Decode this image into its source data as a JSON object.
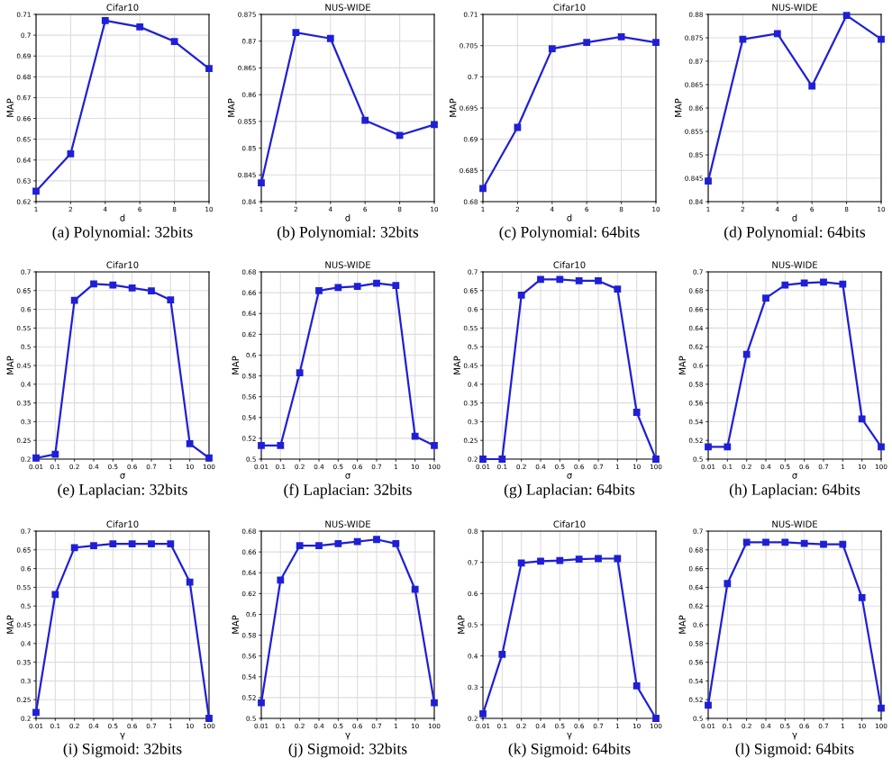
{
  "chart_data": [
    {
      "type": "line",
      "title": "Cifar10",
      "xlabel": "d",
      "ylabel": "MAP",
      "annotations": [
        "(a) Polynomial: 32bits"
      ],
      "categories": [
        "1",
        "2",
        "4",
        "6",
        "8",
        "10"
      ],
      "series": [
        {
          "color": "#1f1fd6",
          "values": [
            0.625,
            0.643,
            0.707,
            0.704,
            0.697,
            0.684
          ]
        }
      ],
      "ylim": [
        0.62,
        0.71
      ],
      "yticks": [
        0.62,
        0.63,
        0.64,
        0.65,
        0.66,
        0.67,
        0.68,
        0.69,
        0.7,
        0.71
      ],
      "grid": true,
      "marker": "square",
      "line_style": "solid"
    },
    {
      "type": "line",
      "title": "NUS-WIDE",
      "xlabel": "d",
      "ylabel": "MAP",
      "annotations": [
        "(b) Polynomial: 32bits"
      ],
      "categories": [
        "1",
        "2",
        "4",
        "6",
        "8",
        "10"
      ],
      "series": [
        {
          "color": "#1f1fd6",
          "values": [
            0.8435,
            0.8716,
            0.8705,
            0.8552,
            0.8524,
            0.8544
          ]
        }
      ],
      "ylim": [
        0.84,
        0.875
      ],
      "yticks": [
        0.84,
        0.845,
        0.85,
        0.855,
        0.86,
        0.865,
        0.87,
        0.875
      ],
      "grid": true,
      "marker": "square",
      "line_style": "solid"
    },
    {
      "type": "line",
      "title": "Cifar10",
      "xlabel": "d",
      "ylabel": "MAP",
      "annotations": [
        "(c) Polynomial: 64bits"
      ],
      "categories": [
        "1",
        "2",
        "4",
        "6",
        "8",
        "10"
      ],
      "series": [
        {
          "color": "#1f1fd6",
          "values": [
            0.6821,
            0.6919,
            0.7045,
            0.7055,
            0.7064,
            0.7055
          ]
        }
      ],
      "ylim": [
        0.68,
        0.71
      ],
      "yticks": [
        0.68,
        0.685,
        0.69,
        0.695,
        0.7,
        0.705,
        0.71
      ],
      "grid": true,
      "marker": "square",
      "line_style": "solid"
    },
    {
      "type": "line",
      "title": "NUS-WIDE",
      "xlabel": "d",
      "ylabel": "MAP",
      "annotations": [
        "(d) Polynomial: 64bits"
      ],
      "categories": [
        "1",
        "2",
        "4",
        "6",
        "8",
        "10"
      ],
      "series": [
        {
          "color": "#1f1fd6",
          "values": [
            0.8444,
            0.8747,
            0.8759,
            0.8647,
            0.8798,
            0.8747
          ]
        }
      ],
      "ylim": [
        0.84,
        0.88
      ],
      "yticks": [
        0.84,
        0.845,
        0.85,
        0.855,
        0.86,
        0.865,
        0.87,
        0.875,
        0.88
      ],
      "grid": true,
      "marker": "square",
      "line_style": "solid"
    },
    {
      "type": "line",
      "title": "Cifar10",
      "xlabel": "σ",
      "ylabel": "MAP",
      "annotations": [
        "(e) Laplacian: 32bits"
      ],
      "categories": [
        "0.01",
        "0.1",
        "0.2",
        "0.4",
        "0.5",
        "0.6",
        "0.7",
        "1",
        "10",
        "100"
      ],
      "series": [
        {
          "color": "#1f1fd6",
          "values": [
            0.203,
            0.213,
            0.624,
            0.668,
            0.665,
            0.657,
            0.649,
            0.625,
            0.241,
            0.203
          ]
        }
      ],
      "ylim": [
        0.2,
        0.7
      ],
      "yticks": [
        0.2,
        0.25,
        0.3,
        0.35,
        0.4,
        0.45,
        0.5,
        0.55,
        0.6,
        0.65,
        0.7
      ],
      "grid": true,
      "marker": "square",
      "line_style": "solid"
    },
    {
      "type": "line",
      "title": "NUS-WIDE",
      "xlabel": "σ",
      "ylabel": "MAP",
      "annotations": [
        "(f) Laplacian: 32bits"
      ],
      "categories": [
        "0.01",
        "0.1",
        "0.2",
        "0.4",
        "0.5",
        "0.6",
        "0.7",
        "1",
        "10",
        "100"
      ],
      "series": [
        {
          "color": "#1f1fd6",
          "values": [
            0.513,
            0.513,
            0.583,
            0.662,
            0.665,
            0.666,
            0.669,
            0.667,
            0.522,
            0.513
          ]
        }
      ],
      "ylim": [
        0.5,
        0.68
      ],
      "yticks": [
        0.5,
        0.52,
        0.54,
        0.56,
        0.58,
        0.6,
        0.62,
        0.64,
        0.66,
        0.68
      ],
      "grid": true,
      "marker": "square",
      "line_style": "solid"
    },
    {
      "type": "line",
      "title": "Cifar10",
      "xlabel": "σ",
      "ylabel": "MAP",
      "annotations": [
        "(g) Laplacian: 64bits"
      ],
      "categories": [
        "0.01",
        "0.1",
        "0.2",
        "0.4",
        "0.5",
        "0.6",
        "0.7",
        "1",
        "10",
        "100"
      ],
      "series": [
        {
          "color": "#1f1fd6",
          "values": [
            0.2,
            0.2,
            0.638,
            0.68,
            0.68,
            0.676,
            0.676,
            0.654,
            0.325,
            0.2
          ]
        }
      ],
      "ylim": [
        0.2,
        0.7
      ],
      "yticks": [
        0.2,
        0.25,
        0.3,
        0.35,
        0.4,
        0.45,
        0.5,
        0.55,
        0.6,
        0.65,
        0.7
      ],
      "grid": true,
      "marker": "square",
      "line_style": "solid"
    },
    {
      "type": "line",
      "title": "NUS-WIDE",
      "xlabel": "σ",
      "ylabel": "MAP",
      "annotations": [
        "(h) Laplacian: 64bits"
      ],
      "categories": [
        "0.01",
        "0.1",
        "0.2",
        "0.4",
        "0.5",
        "0.6",
        "0.7",
        "1",
        "10",
        "100"
      ],
      "series": [
        {
          "color": "#1f1fd6",
          "values": [
            0.513,
            0.513,
            0.612,
            0.672,
            0.686,
            0.688,
            0.689,
            0.687,
            0.543,
            0.513
          ]
        }
      ],
      "ylim": [
        0.5,
        0.7
      ],
      "yticks": [
        0.5,
        0.52,
        0.54,
        0.56,
        0.58,
        0.6,
        0.62,
        0.64,
        0.66,
        0.68,
        0.7
      ],
      "grid": true,
      "marker": "square",
      "line_style": "solid"
    },
    {
      "type": "line",
      "title": "Cifar10",
      "xlabel": "γ",
      "ylabel": "MAP",
      "annotations": [
        "(i) Sigmoid: 32bits"
      ],
      "categories": [
        "0.01",
        "0.1",
        "0.2",
        "0.4",
        "0.5",
        "0.6",
        "0.7",
        "1",
        "10",
        "100"
      ],
      "series": [
        {
          "color": "#1f1fd6",
          "values": [
            0.216,
            0.531,
            0.656,
            0.661,
            0.666,
            0.666,
            0.666,
            0.666,
            0.564,
            0.2
          ]
        }
      ],
      "ylim": [
        0.2,
        0.7
      ],
      "yticks": [
        0.2,
        0.25,
        0.3,
        0.35,
        0.4,
        0.45,
        0.5,
        0.55,
        0.6,
        0.65,
        0.7
      ],
      "grid": true,
      "marker": "square",
      "line_style": "solid"
    },
    {
      "type": "line",
      "title": "NUS-WIDE",
      "xlabel": "γ",
      "ylabel": "MAP",
      "annotations": [
        "(j) Sigmoid: 32bits"
      ],
      "categories": [
        "0.01",
        "0.1",
        "0.2",
        "0.4",
        "0.5",
        "0.6",
        "0.7",
        "1",
        "10",
        "100"
      ],
      "series": [
        {
          "color": "#1f1fd6",
          "values": [
            0.515,
            0.633,
            0.666,
            0.666,
            0.668,
            0.67,
            0.672,
            0.668,
            0.624,
            0.515
          ]
        }
      ],
      "ylim": [
        0.5,
        0.68
      ],
      "yticks": [
        0.5,
        0.52,
        0.54,
        0.56,
        0.58,
        0.6,
        0.62,
        0.64,
        0.66,
        0.68
      ],
      "grid": true,
      "marker": "square",
      "line_style": "solid"
    },
    {
      "type": "line",
      "title": "Cifar10",
      "xlabel": "γ",
      "ylabel": "MAP",
      "annotations": [
        "(k) Sigmoid: 64bits"
      ],
      "categories": [
        "0.01",
        "0.1",
        "0.2",
        "0.4",
        "0.5",
        "0.6",
        "0.7",
        "1",
        "10",
        "100"
      ],
      "series": [
        {
          "color": "#1f1fd6",
          "values": [
            0.215,
            0.405,
            0.698,
            0.704,
            0.706,
            0.71,
            0.712,
            0.712,
            0.304,
            0.2
          ]
        }
      ],
      "ylim": [
        0.2,
        0.8
      ],
      "yticks": [
        0.2,
        0.3,
        0.4,
        0.5,
        0.6,
        0.7,
        0.8
      ],
      "grid": true,
      "marker": "square",
      "line_style": "solid"
    },
    {
      "type": "line",
      "title": "NUS-WIDE",
      "xlabel": "γ",
      "ylabel": "MAP",
      "annotations": [
        "(l) Sigmoid: 64bits"
      ],
      "categories": [
        "0.01",
        "0.1",
        "0.2",
        "0.4",
        "0.5",
        "0.6",
        "0.7",
        "1",
        "10",
        "100"
      ],
      "series": [
        {
          "color": "#1f1fd6",
          "values": [
            0.514,
            0.644,
            0.688,
            0.688,
            0.688,
            0.687,
            0.686,
            0.686,
            0.629,
            0.511
          ]
        }
      ],
      "ylim": [
        0.5,
        0.7
      ],
      "yticks": [
        0.5,
        0.52,
        0.54,
        0.56,
        0.58,
        0.6,
        0.62,
        0.64,
        0.66,
        0.68,
        0.7
      ],
      "grid": true,
      "marker": "square",
      "line_style": "solid"
    }
  ]
}
